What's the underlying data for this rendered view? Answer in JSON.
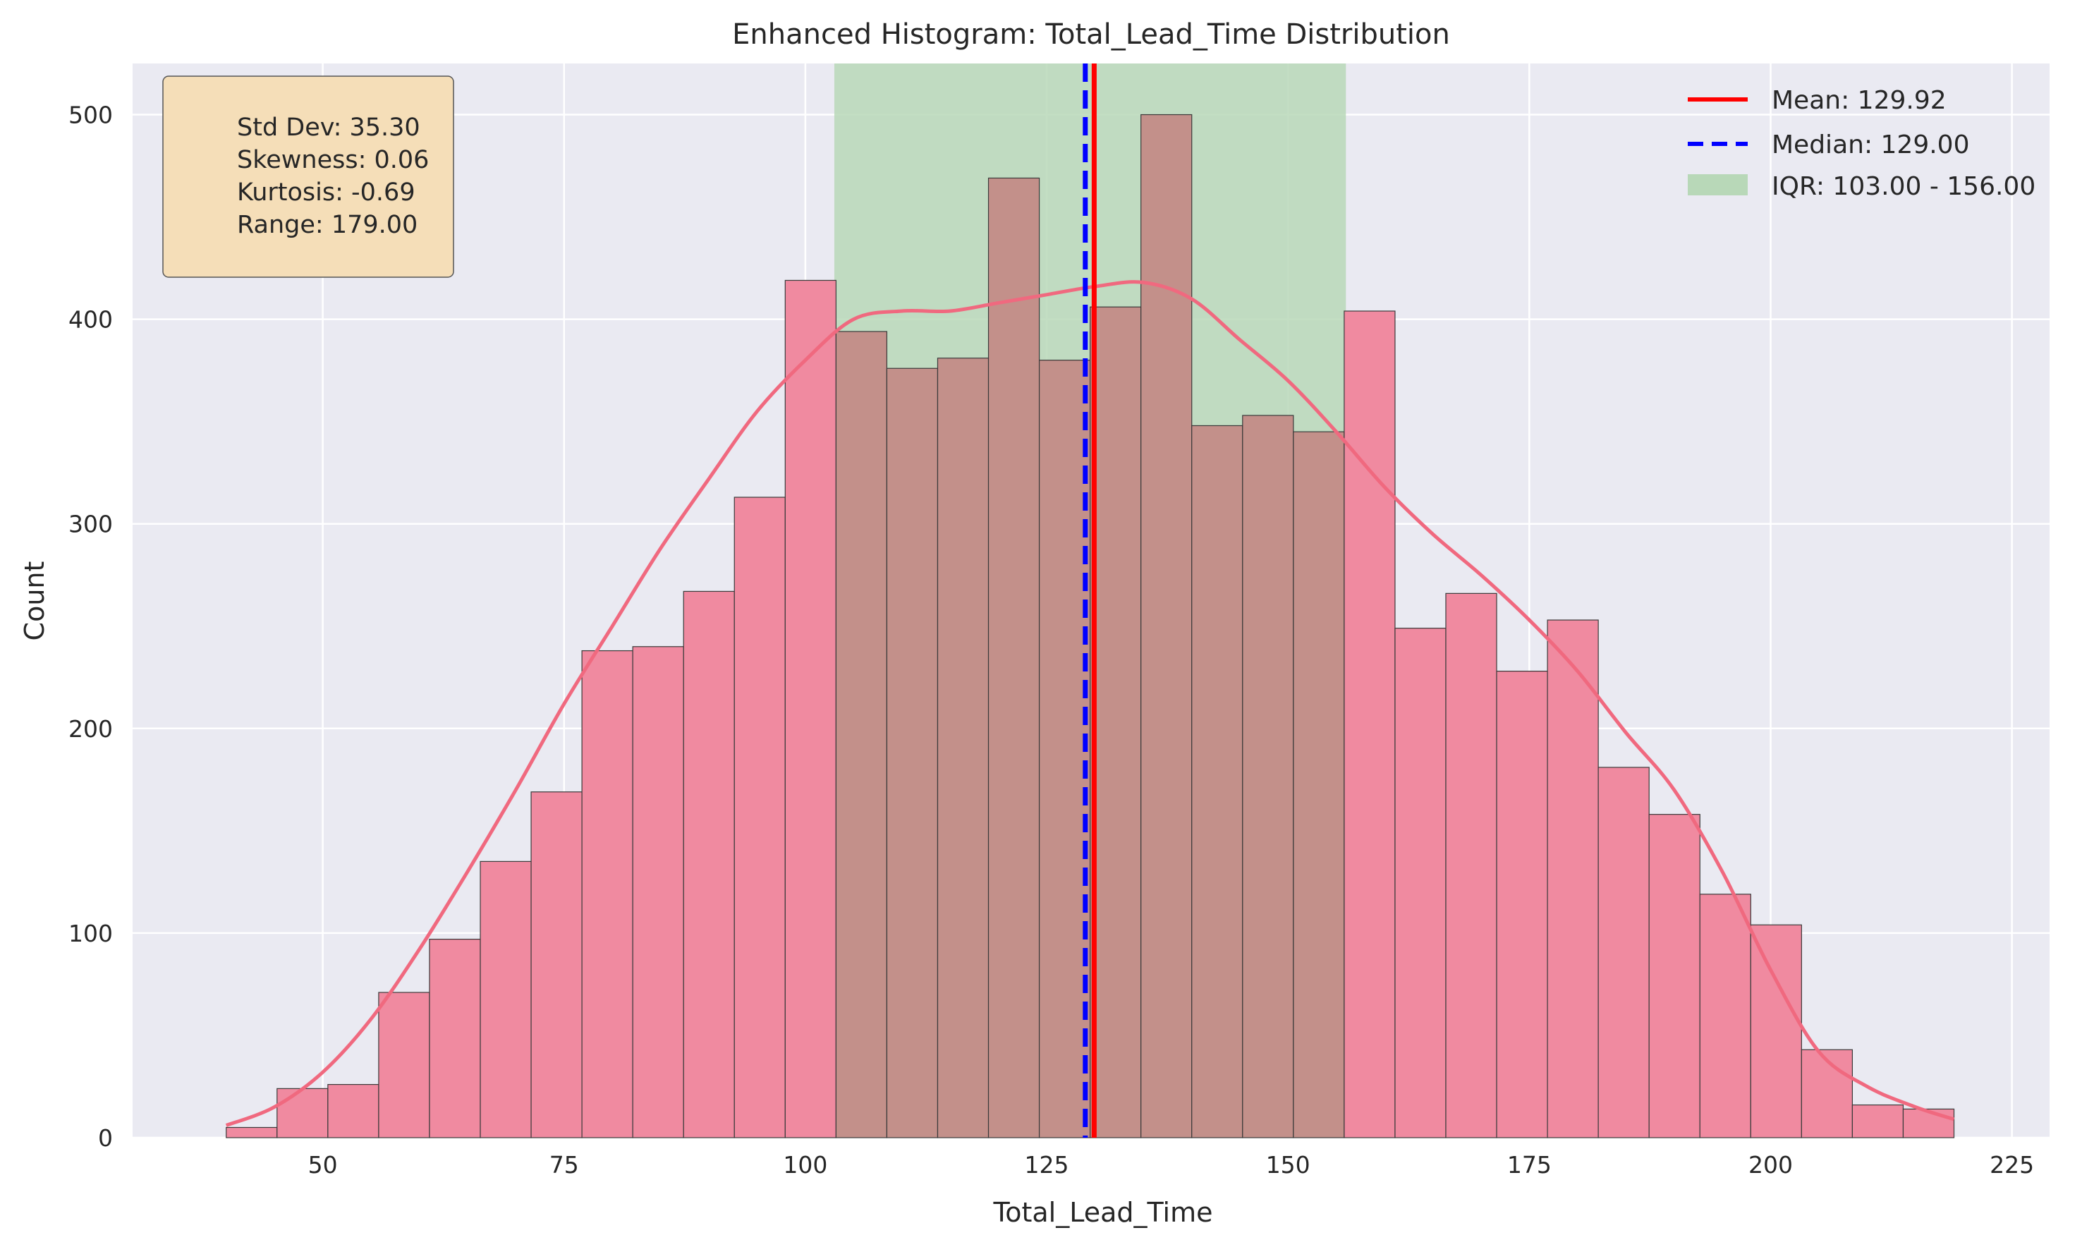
{
  "chart_data": {
    "type": "bar",
    "title": "Enhanced Histogram: Total_Lead_Time Distribution",
    "xlabel": "Total_Lead_Time",
    "ylabel": "Count",
    "xlim": [
      30.3,
      228.9
    ],
    "ylim": [
      0,
      525
    ],
    "xticks": [
      50,
      75,
      100,
      125,
      150,
      175,
      200,
      225
    ],
    "yticks": [
      0,
      100,
      200,
      300,
      400,
      500
    ],
    "grid": true,
    "legend_position": "top-right",
    "bin_start": 40,
    "bin_width": 5.2647,
    "values": [
      5,
      24,
      26,
      71,
      97,
      135,
      169,
      238,
      240,
      267,
      313,
      419,
      394,
      376,
      381,
      469,
      380,
      406,
      500,
      348,
      353,
      345,
      404,
      249,
      266,
      228,
      253,
      181,
      158,
      119,
      104,
      43,
      16,
      14
    ],
    "kde": {
      "x": [
        40,
        45,
        50,
        55,
        60,
        65,
        70,
        75,
        80,
        85,
        90,
        95,
        100,
        105,
        110,
        115,
        120,
        125,
        130,
        135,
        140,
        145,
        150,
        155,
        160,
        165,
        170,
        175,
        180,
        185,
        190,
        195,
        200,
        205,
        210,
        215,
        219
      ],
      "y": [
        6,
        15,
        32,
        58,
        92,
        130,
        170,
        212,
        250,
        288,
        322,
        355,
        380,
        400,
        404,
        404,
        408,
        412,
        416,
        418,
        410,
        390,
        370,
        345,
        318,
        295,
        275,
        253,
        228,
        198,
        170,
        130,
        82,
        42,
        25,
        15,
        9
      ]
    },
    "mean": 129.92,
    "median": 129.0,
    "iqr": [
      103.0,
      156.0
    ],
    "stats_lines": [
      "Std Dev: 35.30",
      "Skewness: 0.06",
      "Kurtosis: -0.69",
      "Range: 179.00"
    ],
    "legend": [
      "Mean: 129.92",
      "Median: 129.00",
      "IQR: 103.00 - 156.00"
    ],
    "colors": {
      "background": "#eaeaf2",
      "grid": "#ffffff",
      "bar": "#f08aa0",
      "bar_in_iqr": "#c3908a",
      "bar_edge": "#3a3a3a",
      "kde": "#f0697f",
      "mean": "#ff0000",
      "median": "#0000ff",
      "iqr_band": "#b8d8b8",
      "stats_box": "#f5deb8"
    }
  }
}
